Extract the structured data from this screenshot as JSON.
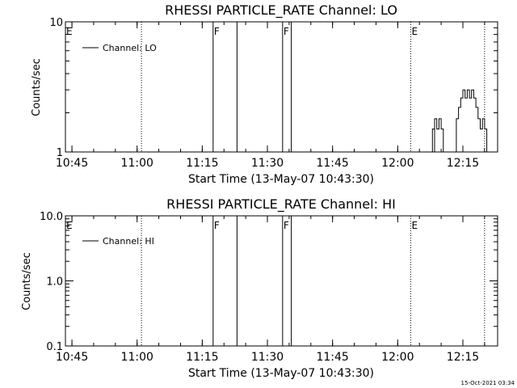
{
  "footer": {
    "timestamp": "15-Oct-2021 03:34"
  },
  "colors": {
    "background": "#ffffff",
    "foreground": "#000000"
  },
  "chart_data": [
    {
      "type": "line",
      "title": "RHESSI PARTICLE_RATE Channel: LO",
      "xlabel": "Start Time (13-May-07 10:43:30)",
      "ylabel": "Counts/sec",
      "yscale": "log",
      "ylim": [
        1,
        10
      ],
      "yticks": [
        {
          "v": 1,
          "label": "1"
        },
        {
          "v": 10,
          "label": "10"
        }
      ],
      "xlim": [
        "10:43:30",
        "12:23:00"
      ],
      "xticks": [
        "10:45",
        "11:00",
        "11:15",
        "11:30",
        "11:45",
        "12:00",
        "12:15"
      ],
      "legend": {
        "position": "top-left",
        "label": "Channel: LO"
      },
      "event_lines": [
        {
          "time": "10:43:30",
          "style": "dotted",
          "label": "E"
        },
        {
          "time": "11:01:00",
          "style": "dotted",
          "label": ""
        },
        {
          "time": "11:17:30",
          "style": "solid",
          "label": "F"
        },
        {
          "time": "11:23:00",
          "style": "solid",
          "label": ""
        },
        {
          "time": "11:33:30",
          "style": "solid",
          "label": "F"
        },
        {
          "time": "11:35:30",
          "style": "solid",
          "label": ""
        },
        {
          "time": "12:03:00",
          "style": "dotted",
          "label": "E"
        },
        {
          "time": "12:20:00",
          "style": "dotted",
          "label": ""
        }
      ],
      "series": [
        {
          "name": "Channel: LO",
          "points": [
            [
              "12:08:00",
              1
            ],
            [
              "12:08:00",
              1.5
            ],
            [
              "12:08:30",
              1.5
            ],
            [
              "12:08:30",
              1
            ],
            [
              "12:08:30",
              1.8
            ],
            [
              "12:09:00",
              1.8
            ],
            [
              "12:09:00",
              1.5
            ],
            [
              "12:09:30",
              1.5
            ],
            [
              "12:09:30",
              1.8
            ],
            [
              "12:10:00",
              1.8
            ],
            [
              "12:10:00",
              1.5
            ],
            [
              "12:10:30",
              1.5
            ],
            [
              "12:10:30",
              1
            ],
            [
              "12:13:30",
              1
            ],
            [
              "12:13:30",
              1.8
            ],
            [
              "12:14:00",
              1.8
            ],
            [
              "12:14:00",
              2.2
            ],
            [
              "12:14:30",
              2.2
            ],
            [
              "12:14:30",
              2.6
            ],
            [
              "12:15:00",
              2.6
            ],
            [
              "12:15:00",
              3
            ],
            [
              "12:15:30",
              3
            ],
            [
              "12:15:30",
              2.6
            ],
            [
              "12:16:00",
              2.6
            ],
            [
              "12:16:00",
              3
            ],
            [
              "12:16:30",
              3
            ],
            [
              "12:16:30",
              2.6
            ],
            [
              "12:17:00",
              2.6
            ],
            [
              "12:17:00",
              3
            ],
            [
              "12:17:30",
              3
            ],
            [
              "12:17:30",
              2.6
            ],
            [
              "12:18:00",
              2.6
            ],
            [
              "12:18:00",
              2.2
            ],
            [
              "12:18:30",
              2.2
            ],
            [
              "12:18:30",
              1.8
            ],
            [
              "12:19:00",
              1.8
            ],
            [
              "12:19:00",
              1.5
            ],
            [
              "12:19:30",
              1.5
            ],
            [
              "12:19:30",
              1.8
            ],
            [
              "12:20:00",
              1.8
            ],
            [
              "12:20:00",
              1.5
            ],
            [
              "12:20:30",
              1.5
            ],
            [
              "12:20:30",
              1
            ]
          ]
        }
      ]
    },
    {
      "type": "line",
      "title": "RHESSI PARTICLE_RATE Channel: HI",
      "xlabel": "Start Time (13-May-07 10:43:30)",
      "ylabel": "Counts/sec",
      "yscale": "log",
      "ylim": [
        0.1,
        10
      ],
      "yticks": [
        {
          "v": 0.1,
          "label": "0.1"
        },
        {
          "v": 1,
          "label": "1.0"
        },
        {
          "v": 10,
          "label": "10.0"
        }
      ],
      "xlim": [
        "10:43:30",
        "12:23:00"
      ],
      "xticks": [
        "10:45",
        "11:00",
        "11:15",
        "11:30",
        "11:45",
        "12:00",
        "12:15"
      ],
      "legend": {
        "position": "top-left",
        "label": "Channel: HI"
      },
      "event_lines": [
        {
          "time": "10:43:30",
          "style": "dotted",
          "label": "E"
        },
        {
          "time": "11:01:00",
          "style": "dotted",
          "label": ""
        },
        {
          "time": "11:17:30",
          "style": "solid",
          "label": "F"
        },
        {
          "time": "11:23:00",
          "style": "solid",
          "label": ""
        },
        {
          "time": "11:33:30",
          "style": "solid",
          "label": "F"
        },
        {
          "time": "11:35:30",
          "style": "solid",
          "label": ""
        },
        {
          "time": "12:03:00",
          "style": "dotted",
          "label": "E"
        },
        {
          "time": "12:20:00",
          "style": "dotted",
          "label": ""
        }
      ],
      "series": [
        {
          "name": "Channel: HI",
          "points": []
        }
      ]
    }
  ]
}
